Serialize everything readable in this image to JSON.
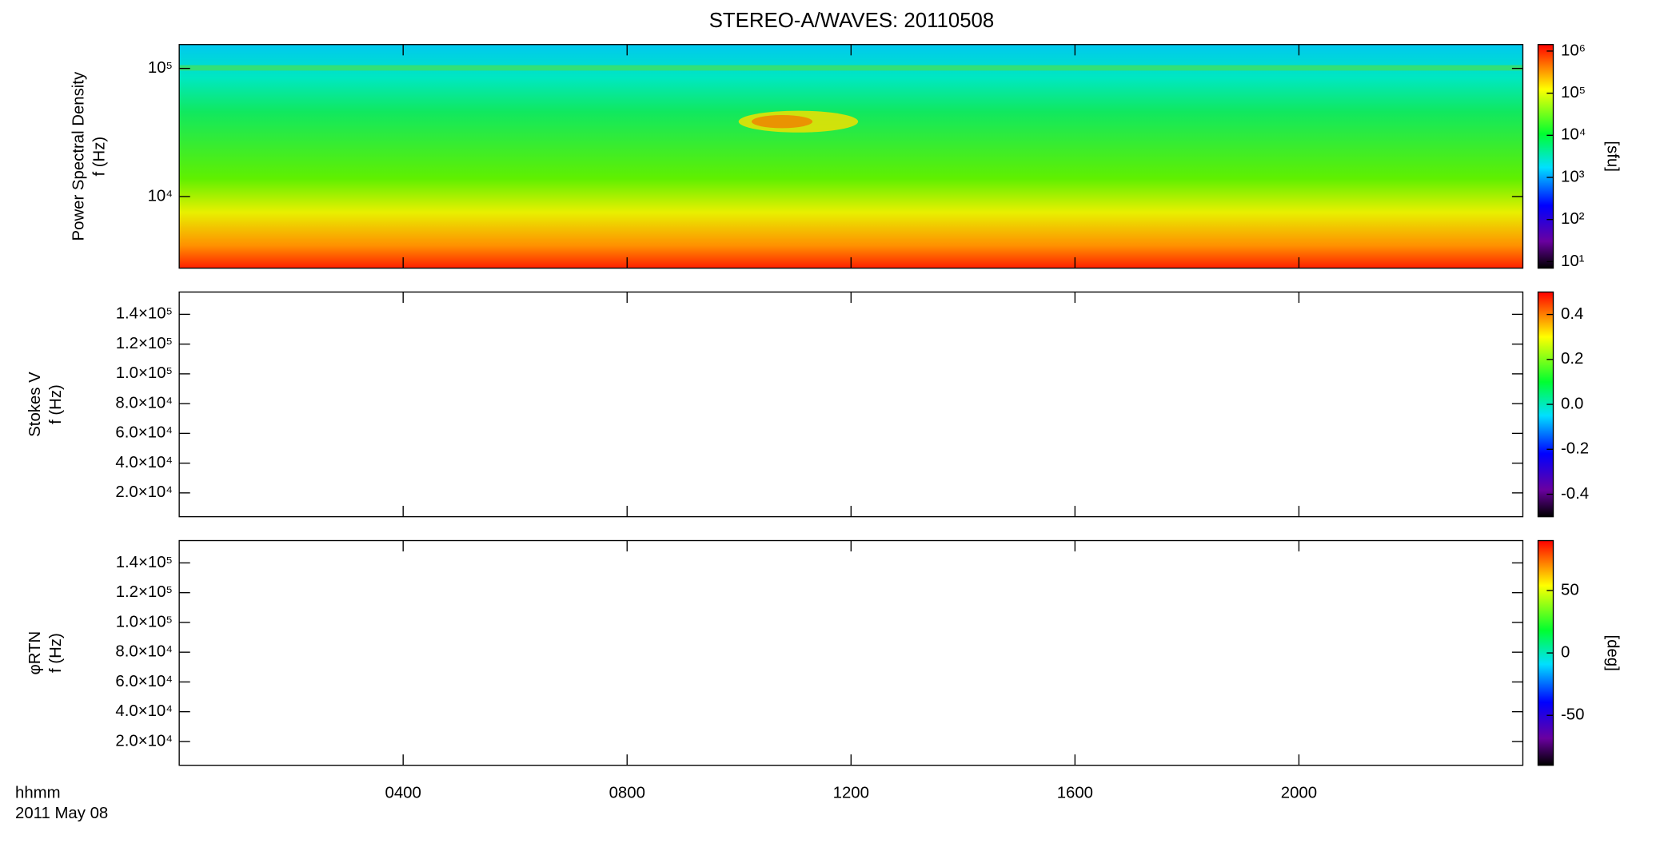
{
  "chart_data": {
    "type": "spectrogram",
    "title": "STEREO-A/WAVES: 20110508",
    "x_label_lines": [
      "hhmm",
      "2011 May 08"
    ],
    "xlim": [
      0,
      24
    ],
    "xticks": [
      {
        "value": 4,
        "label": "0400"
      },
      {
        "value": 8,
        "label": "0800"
      },
      {
        "value": 12,
        "label": "1200"
      },
      {
        "value": 16,
        "label": "1600"
      },
      {
        "value": 20,
        "label": "2000"
      }
    ],
    "panels": [
      {
        "ylabel_lines": [
          "Power Spectral Density",
          "f (Hz)"
        ],
        "ylog": true,
        "ylim": [
          2760,
          153600
        ],
        "yticks": [
          {
            "value": 10000,
            "label": "10⁴"
          },
          {
            "value": 100000,
            "label": "10⁵"
          }
        ],
        "colorbar": {
          "label": "[sfu]",
          "log": true,
          "lim": [
            7,
            1430000
          ],
          "ticks": [
            {
              "value": 10,
              "label": "10¹"
            },
            {
              "value": 100,
              "label": "10²"
            },
            {
              "value": 1000,
              "label": "10³"
            },
            {
              "value": 10000,
              "label": "10⁴"
            },
            {
              "value": 100000,
              "label": "10⁵"
            },
            {
              "value": 1000000,
              "label": "10⁶"
            }
          ]
        }
      },
      {
        "ylabel_lines": [
          "Stokes V",
          "f (Hz)"
        ],
        "ylog": false,
        "ylim": [
          4000,
          155000
        ],
        "yticks": [
          {
            "value": 20000,
            "label": "2.0×10⁴"
          },
          {
            "value": 40000,
            "label": "4.0×10⁴"
          },
          {
            "value": 60000,
            "label": "6.0×10⁴"
          },
          {
            "value": 80000,
            "label": "8.0×10⁴"
          },
          {
            "value": 100000,
            "label": "1.0×10⁵"
          },
          {
            "value": 120000,
            "label": "1.2×10⁵"
          },
          {
            "value": 140000,
            "label": "1.4×10⁵"
          }
        ],
        "colorbar": {
          "log": false,
          "lim": [
            -0.5,
            0.5
          ],
          "ticks": [
            -0.4,
            -0.2,
            {
              "value": 0,
              "label": "0.0"
            },
            0.2,
            0.4
          ]
        }
      },
      {
        "ylabel_lines": [
          "φRTN",
          "f (Hz)"
        ],
        "ylog": false,
        "ylim": [
          4000,
          155000
        ],
        "yticks": [
          {
            "value": 20000,
            "label": "2.0×10⁴"
          },
          {
            "value": 40000,
            "label": "4.0×10⁴"
          },
          {
            "value": 60000,
            "label": "6.0×10⁴"
          },
          {
            "value": 80000,
            "label": "8.0×10⁴"
          },
          {
            "value": 100000,
            "label": "1.0×10⁵"
          },
          {
            "value": 120000,
            "label": "1.2×10⁵"
          },
          {
            "value": 140000,
            "label": "1.4×10⁵"
          }
        ],
        "colorbar": {
          "label": "[deg]",
          "log": false,
          "lim": [
            -90,
            90
          ],
          "ticks": [
            -50,
            0,
            50
          ]
        }
      }
    ]
  }
}
